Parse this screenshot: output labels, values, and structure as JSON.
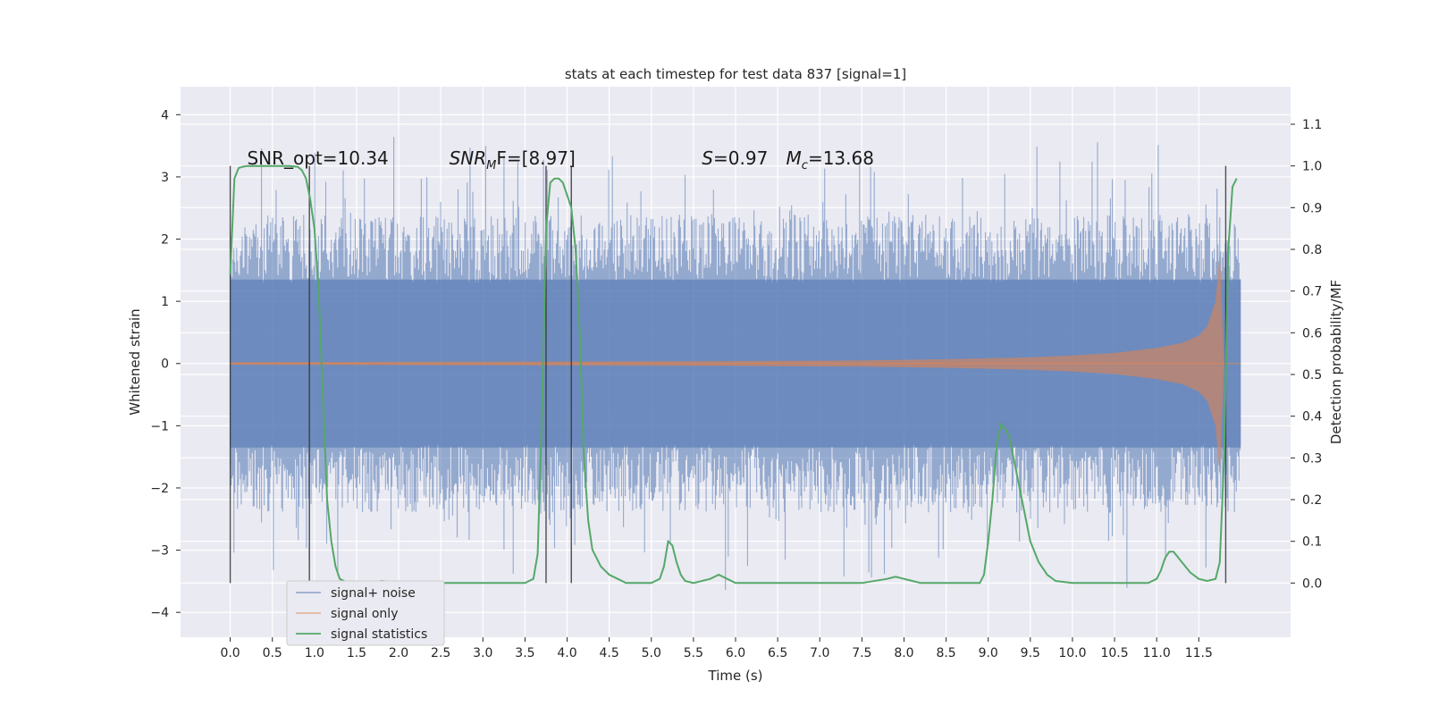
{
  "chart_data": {
    "type": "line",
    "title": "stats at each timestep for test data 837 [signal=1]",
    "xlabel": "Time (s)",
    "ylabel": "Whitened strain",
    "ylabel_right": "Detection probability/MF",
    "xlim": [
      -0.59,
      12.59
    ],
    "ylim": [
      -4.4,
      4.45
    ],
    "ylim_right": [
      -0.13,
      1.19
    ],
    "x_ticks": [
      0.0,
      0.5,
      1.0,
      1.5,
      2.0,
      2.5,
      3.0,
      3.5,
      4.0,
      4.5,
      5.0,
      5.5,
      6.0,
      6.5,
      7.0,
      7.5,
      8.0,
      8.5,
      9.0,
      9.5,
      10.0,
      10.5,
      11.0,
      11.5
    ],
    "x_tick_labels": [
      "0.0",
      "0.5",
      "1.0",
      "1.5",
      "2.0",
      "2.5",
      "3.0",
      "3.5",
      "4.0",
      "4.5",
      "5.0",
      "5.5",
      "6.0",
      "6.5",
      "7.0",
      "7.5",
      "8.0",
      "8.5",
      "9.0",
      "9.5",
      "10.0",
      "10.5",
      "11.0",
      "11.5"
    ],
    "y_ticks": [
      -4,
      -3,
      -2,
      -1,
      0,
      1,
      2,
      3,
      4
    ],
    "y_tick_labels": [
      "−4",
      "−3",
      "−2",
      "−1",
      "0",
      "1",
      "2",
      "3",
      "4"
    ],
    "y_ticks_right": [
      0.0,
      0.1,
      0.2,
      0.3,
      0.4,
      0.5,
      0.6,
      0.7,
      0.8,
      0.9,
      1.0,
      1.1
    ],
    "y_tick_labels_right": [
      "0.0",
      "0.1",
      "0.2",
      "0.3",
      "0.4",
      "0.5",
      "0.6",
      "0.7",
      "0.8",
      "0.9",
      "1.0",
      "1.1"
    ],
    "grid": true,
    "legend_position": "lower-left",
    "annotations": [
      {
        "label": "SNR_opt=10.34",
        "x": 0.2,
        "y": 3.2
      },
      {
        "label": "SNR",
        "sub": "M",
        "rest": "F=[8.97]",
        "x": 2.6,
        "y": 3.2,
        "italic": true
      },
      {
        "label": "S",
        "rest": "=0.97",
        "x": 5.6,
        "y": 3.2,
        "italic": true
      },
      {
        "label": "M",
        "sub": "c",
        "rest": "=13.68",
        "x": 6.6,
        "y": 3.2,
        "italic": true
      }
    ],
    "vertical_markers": [
      {
        "x": 0.0,
        "ymax": 1.0
      },
      {
        "x": 0.94,
        "ymax": 1.0
      },
      {
        "x": 3.75,
        "ymax": 1.0
      },
      {
        "x": 4.05,
        "ymax": 1.0
      },
      {
        "x": 11.82,
        "ymax": 1.0
      }
    ],
    "series": [
      {
        "name": "signal+ noise",
        "color": "#4c72b0",
        "axis": "left",
        "kind": "noise_band",
        "x_range": [
          0.0,
          12.0
        ],
        "envelope_low": -2.3,
        "envelope_high": 2.3,
        "min_observed": -3.9,
        "max_observed": 4.1
      },
      {
        "name": "signal only",
        "color": "#dd8452",
        "axis": "left",
        "kind": "chirp_envelope",
        "x": [
          0.0,
          3.0,
          6.0,
          7.5,
          8.5,
          9.5,
          10.0,
          10.5,
          11.0,
          11.3,
          11.5,
          11.6,
          11.7,
          11.75,
          11.8,
          12.0
        ],
        "amplitude": [
          0.02,
          0.03,
          0.04,
          0.05,
          0.07,
          0.1,
          0.13,
          0.17,
          0.25,
          0.33,
          0.45,
          0.6,
          1.0,
          1.8,
          0.0,
          0.0
        ]
      },
      {
        "name": "signal statistics",
        "color": "#55a868",
        "axis": "right",
        "kind": "line",
        "x": [
          0.0,
          0.05,
          0.1,
          0.15,
          0.2,
          0.3,
          0.5,
          0.7,
          0.8,
          0.85,
          0.9,
          0.95,
          1.0,
          1.05,
          1.1,
          1.15,
          1.2,
          1.25,
          1.3,
          1.4,
          1.5,
          1.7,
          1.8,
          2.0,
          2.5,
          3.0,
          3.4,
          3.5,
          3.6,
          3.65,
          3.7,
          3.75,
          3.8,
          3.85,
          3.9,
          3.95,
          4.0,
          4.05,
          4.1,
          4.15,
          4.2,
          4.25,
          4.3,
          4.4,
          4.5,
          4.6,
          4.7,
          4.8,
          5.0,
          5.1,
          5.15,
          5.2,
          5.25,
          5.3,
          5.35,
          5.4,
          5.5,
          5.7,
          5.8,
          5.9,
          6.0,
          6.1,
          6.5,
          7.0,
          7.5,
          7.8,
          7.9,
          8.0,
          8.2,
          8.5,
          8.9,
          8.95,
          9.0,
          9.05,
          9.1,
          9.15,
          9.2,
          9.25,
          9.3,
          9.4,
          9.5,
          9.6,
          9.7,
          9.8,
          10.0,
          10.5,
          10.9,
          11.0,
          11.05,
          11.1,
          11.15,
          11.2,
          11.3,
          11.4,
          11.5,
          11.6,
          11.7,
          11.75,
          11.8,
          11.85,
          11.9,
          11.95
        ],
        "y": [
          0.74,
          0.97,
          0.995,
          0.998,
          1.0,
          1.0,
          1.0,
          1.0,
          0.998,
          0.99,
          0.97,
          0.92,
          0.85,
          0.7,
          0.45,
          0.2,
          0.1,
          0.04,
          0.01,
          0.0,
          0.0,
          0.0,
          0.005,
          0.0,
          0.0,
          0.0,
          0.0,
          0.0,
          0.01,
          0.07,
          0.4,
          0.85,
          0.96,
          0.97,
          0.97,
          0.96,
          0.93,
          0.9,
          0.8,
          0.6,
          0.3,
          0.15,
          0.08,
          0.04,
          0.02,
          0.01,
          0.0,
          0.0,
          0.0,
          0.01,
          0.04,
          0.1,
          0.09,
          0.05,
          0.02,
          0.005,
          0.0,
          0.01,
          0.02,
          0.01,
          0.0,
          0.0,
          0.0,
          0.0,
          0.0,
          0.01,
          0.015,
          0.01,
          0.0,
          0.0,
          0.0,
          0.02,
          0.1,
          0.2,
          0.33,
          0.38,
          0.37,
          0.35,
          0.3,
          0.2,
          0.1,
          0.05,
          0.02,
          0.005,
          0.0,
          0.0,
          0.0,
          0.01,
          0.03,
          0.06,
          0.075,
          0.075,
          0.05,
          0.025,
          0.01,
          0.005,
          0.01,
          0.05,
          0.3,
          0.8,
          0.95,
          0.97
        ]
      }
    ]
  }
}
